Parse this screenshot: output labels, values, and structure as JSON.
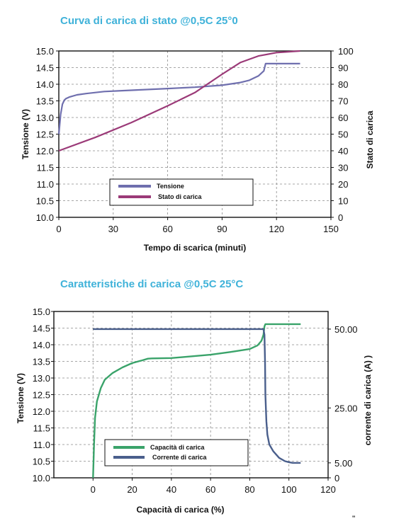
{
  "chart_data": [
    {
      "type": "line",
      "title": "Curva di carica di stato @0,5C 25°0",
      "xlabel": "Tempo di scarica  (minuti)",
      "ylabel": "Tensione (V)",
      "y2label": "Stato di carica",
      "xlim": [
        0,
        150
      ],
      "ylim": [
        10.0,
        15.0
      ],
      "y2lim": [
        0,
        100
      ],
      "x_ticks": [
        "0",
        "30",
        "60",
        "90",
        "120",
        "150"
      ],
      "y_ticks": [
        "10.0",
        "10.5",
        "11.0",
        "11.5",
        "12.0",
        "12.5",
        "13.0",
        "13.5",
        "14.0",
        "14.5",
        "15.0"
      ],
      "y2_ticks": [
        "0",
        "10",
        "20",
        "30",
        "40",
        "50",
        "60",
        "70",
        "80",
        "90",
        "100"
      ],
      "grid": true,
      "legend": "bottom-center",
      "series": [
        {
          "name": "Tensione",
          "axis": "left",
          "color": "#6f6fae",
          "x": [
            0,
            0.5,
            1,
            2,
            3,
            4,
            6,
            10,
            15,
            25,
            40,
            60,
            75,
            90,
            100,
            105,
            110,
            113,
            114,
            115,
            120,
            133
          ],
          "y": [
            12.5,
            12.8,
            13.1,
            13.4,
            13.52,
            13.57,
            13.62,
            13.68,
            13.72,
            13.78,
            13.82,
            13.87,
            13.91,
            13.97,
            14.05,
            14.12,
            14.25,
            14.4,
            14.62,
            14.62,
            14.62,
            14.62
          ]
        },
        {
          "name": "Stato di carica",
          "axis": "right",
          "color": "#9b3a78",
          "x": [
            0,
            20,
            40,
            60,
            75,
            90,
            100,
            110,
            120,
            133
          ],
          "y": [
            40,
            48,
            57,
            67,
            75,
            86,
            93,
            97,
            99,
            100
          ]
        }
      ]
    },
    {
      "type": "line",
      "title": "Caratteristiche di carica @0,5C 25°C",
      "xlabel": "Capacità di carica  (%)",
      "ylabel": "Tensione (V)",
      "y2label": "corrente di carica (A)  )",
      "xlim": [
        -20,
        120
      ],
      "ylim": [
        10.0,
        15.0
      ],
      "x_ticks": [
        "0",
        "20",
        "40",
        "60",
        "80",
        "100",
        "120"
      ],
      "y_ticks": [
        "10.0",
        "10.5",
        "11.0",
        "11.5",
        "12.0",
        "12.5",
        "13.0",
        "13.5",
        "14.0",
        "14.5",
        "15.0"
      ],
      "y2_ticks": [
        "0",
        "5.00",
        "25.00",
        "50.00"
      ],
      "grid": true,
      "legend": "bottom-center",
      "series": [
        {
          "name": "Capacità di carica",
          "axis": "left",
          "color": "#3aa36a",
          "x": [
            0,
            0.5,
            1,
            2,
            4,
            6,
            10,
            15,
            20,
            25,
            28,
            30,
            40,
            60,
            70,
            80,
            84,
            86,
            87,
            87.5,
            88,
            100,
            106
          ],
          "y": [
            10.0,
            11.0,
            11.8,
            12.3,
            12.7,
            12.95,
            13.15,
            13.32,
            13.45,
            13.53,
            13.58,
            13.59,
            13.6,
            13.7,
            13.78,
            13.87,
            13.98,
            14.12,
            14.3,
            14.55,
            14.62,
            14.62,
            14.62
          ]
        },
        {
          "name": "Corrente di carica",
          "axis": "left",
          "color": "#4a5f8c",
          "x": [
            0,
            20,
            40,
            60,
            80,
            87,
            87.5,
            87.8,
            88,
            88.5,
            89,
            90,
            92,
            95,
            98,
            100,
            102,
            106
          ],
          "y": [
            14.47,
            14.47,
            14.47,
            14.47,
            14.47,
            14.47,
            14.3,
            13.5,
            12.5,
            11.7,
            11.3,
            11.0,
            10.8,
            10.6,
            10.5,
            10.47,
            10.45,
            10.45
          ]
        }
      ]
    }
  ],
  "footer_mark": "''"
}
